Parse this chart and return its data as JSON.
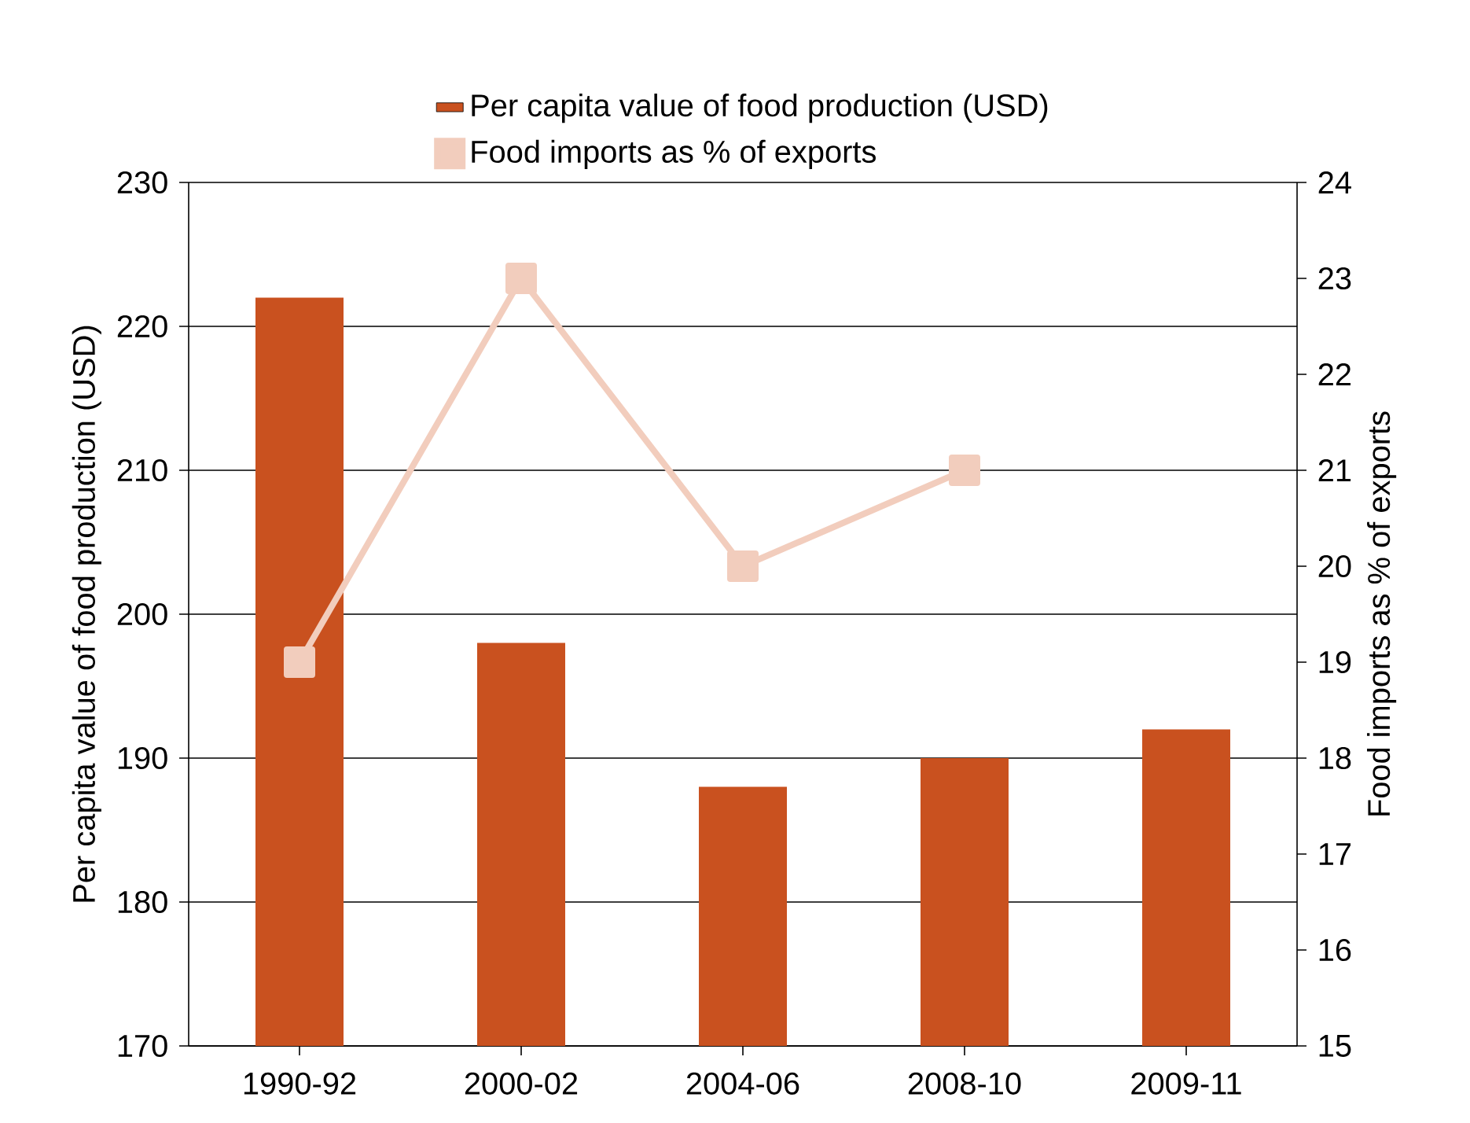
{
  "chart_data": {
    "type": "bar",
    "categories": [
      "1990-92",
      "2000-02",
      "2004-06",
      "2008-10",
      "2009-11"
    ],
    "series": [
      {
        "name": "Per capita value of food production (USD)",
        "color": "#c9511f",
        "values": [
          222,
          198,
          188,
          190,
          192
        ]
      },
      {
        "name": "Food imports as % of exports",
        "type": "line",
        "axis": "y2",
        "color": "#f2cdbd",
        "marker": "square",
        "values": [
          19,
          23,
          20,
          21,
          null
        ]
      }
    ],
    "ylabel": "Per capita value of food production (USD)",
    "y2label": "Food imports as % of exports",
    "ylim": [
      170,
      230
    ],
    "yticks": [
      170,
      180,
      190,
      200,
      210,
      220,
      230
    ],
    "y2lim": [
      15,
      24
    ],
    "y2ticks": [
      15,
      16,
      17,
      18,
      19,
      20,
      21,
      22,
      23,
      24
    ],
    "grid": "y",
    "legend": "top"
  }
}
